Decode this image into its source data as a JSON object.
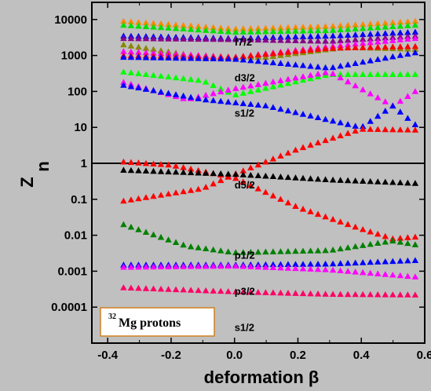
{
  "chart_data": {
    "type": "scatter",
    "xlabel": "deformation β",
    "ylabel_main": "Z",
    "ylabel_sub": "n",
    "yscale": "log",
    "xlim": [
      -0.45,
      0.6
    ],
    "ylim": [
      1e-05,
      30000
    ],
    "x_ticks": [
      -0.4,
      -0.2,
      0.0,
      0.2,
      0.4,
      0.6
    ],
    "x_tick_labels": [
      "-0.4",
      "-0.2",
      "0.0",
      "0.2",
      "0.4",
      "0.6"
    ],
    "y_ticks": [
      0.0001,
      0.001,
      0.01,
      0.1,
      1,
      10,
      100,
      1000,
      10000
    ],
    "y_tick_labels": [
      "0.0001",
      "0.001",
      "0.01",
      "0.1",
      "1",
      "10",
      "100",
      "1000",
      "10000"
    ],
    "reference_line": {
      "y": 1
    },
    "legend": {
      "sup": "32",
      "text": "Mg protons"
    },
    "annotations": [
      {
        "text": "f7/2",
        "x": 0.0,
        "y": 1900
      },
      {
        "text": "d3/2",
        "x": 0.0,
        "y": 190
      },
      {
        "text": "s1/2",
        "x": 0.0,
        "y": 20
      },
      {
        "text": "d5/2",
        "x": 0.0,
        "y": 0.2
      },
      {
        "text": "p1/2",
        "x": 0.0,
        "y": 0.0022
      },
      {
        "text": "p3/2",
        "x": 0.0,
        "y": 0.00022
      },
      {
        "text": "s1/2",
        "x": 0.0,
        "y": 2.2e-05
      }
    ],
    "x_range": [
      -0.35,
      0.57
    ],
    "n_points": 40,
    "series": [
      {
        "color": "#ff8800",
        "knots": [
          [
            -0.35,
            9000
          ],
          [
            0.0,
            5500
          ],
          [
            0.3,
            6500
          ],
          [
            0.57,
            9000
          ]
        ]
      },
      {
        "color": "#00e000",
        "knots": [
          [
            -0.35,
            7000
          ],
          [
            0.0,
            4500
          ],
          [
            0.3,
            5000
          ],
          [
            0.57,
            7000
          ]
        ]
      },
      {
        "color": "#0000ff",
        "knots": [
          [
            -0.35,
            3500
          ],
          [
            0.0,
            3000
          ],
          [
            0.3,
            3500
          ],
          [
            0.57,
            4500
          ]
        ]
      },
      {
        "color": "#880088",
        "knots": [
          [
            -0.35,
            3000
          ],
          [
            0.0,
            2800
          ],
          [
            0.3,
            2500
          ],
          [
            0.57,
            3500
          ]
        ]
      },
      {
        "color": "#888800",
        "knots": [
          [
            -0.35,
            2000
          ],
          [
            -0.1,
            900
          ],
          [
            0.1,
            900
          ],
          [
            0.35,
            1700
          ],
          [
            0.57,
            1500
          ]
        ]
      },
      {
        "color": "#ff00ff",
        "knots": [
          [
            -0.35,
            1300
          ],
          [
            0.0,
            900
          ],
          [
            0.3,
            1800
          ],
          [
            0.57,
            3000
          ]
        ]
      },
      {
        "color": "#ff0000",
        "knots": [
          [
            -0.35,
            1000
          ],
          [
            0.0,
            900
          ],
          [
            0.3,
            1600
          ],
          [
            0.57,
            1800
          ]
        ]
      },
      {
        "color": "#0000ff",
        "knots": [
          [
            -0.35,
            900
          ],
          [
            0.0,
            800
          ],
          [
            0.3,
            450
          ],
          [
            0.57,
            1200
          ]
        ]
      },
      {
        "color": "#00ff00",
        "knots": [
          [
            -0.35,
            350
          ],
          [
            -0.1,
            200
          ],
          [
            0.0,
            80
          ],
          [
            0.3,
            300
          ],
          [
            0.57,
            300
          ]
        ]
      },
      {
        "color": "#ff00ff",
        "knots": [
          [
            -0.35,
            180
          ],
          [
            -0.15,
            60
          ],
          [
            0.0,
            120
          ],
          [
            0.3,
            350
          ],
          [
            0.5,
            40
          ],
          [
            0.57,
            100
          ]
        ]
      },
      {
        "color": "#0000ff",
        "knots": [
          [
            -0.35,
            150
          ],
          [
            -0.1,
            60
          ],
          [
            0.1,
            40
          ],
          [
            0.4,
            10
          ],
          [
            0.5,
            40
          ],
          [
            0.57,
            12
          ]
        ]
      },
      {
        "color": "#ff0000",
        "knots": [
          [
            -0.35,
            1.1
          ],
          [
            -0.2,
            0.9
          ],
          [
            0.0,
            0.4
          ],
          [
            0.2,
            0.06
          ],
          [
            0.4,
            0.015
          ],
          [
            0.5,
            0.008
          ],
          [
            0.57,
            0.009
          ]
        ]
      },
      {
        "color": "#ff0000",
        "knots": [
          [
            -0.35,
            0.09
          ],
          [
            -0.1,
            0.2
          ],
          [
            0.0,
            0.5
          ],
          [
            0.2,
            2.5
          ],
          [
            0.4,
            9
          ],
          [
            0.57,
            8.5
          ]
        ]
      },
      {
        "color": "#000000",
        "knots": [
          [
            -0.35,
            0.65
          ],
          [
            0.0,
            0.5
          ],
          [
            0.3,
            0.35
          ],
          [
            0.57,
            0.28
          ]
        ]
      },
      {
        "color": "#008000",
        "knots": [
          [
            -0.35,
            0.02
          ],
          [
            -0.15,
            0.005
          ],
          [
            0.0,
            0.0033
          ],
          [
            0.3,
            0.0038
          ],
          [
            0.5,
            0.007
          ],
          [
            0.57,
            0.0055
          ]
        ]
      },
      {
        "color": "#0000ff",
        "knots": [
          [
            -0.35,
            0.0015
          ],
          [
            0.0,
            0.0015
          ],
          [
            0.3,
            0.0016
          ],
          [
            0.57,
            0.002
          ]
        ]
      },
      {
        "color": "#ff00ff",
        "knots": [
          [
            -0.35,
            0.0013
          ],
          [
            0.0,
            0.0014
          ],
          [
            0.3,
            0.0011
          ],
          [
            0.57,
            0.0007
          ]
        ]
      },
      {
        "color": "#ff0066",
        "knots": [
          [
            -0.35,
            0.00035
          ],
          [
            0.0,
            0.00027
          ],
          [
            0.3,
            0.00023
          ],
          [
            0.57,
            0.00022
          ]
        ]
      }
    ]
  }
}
